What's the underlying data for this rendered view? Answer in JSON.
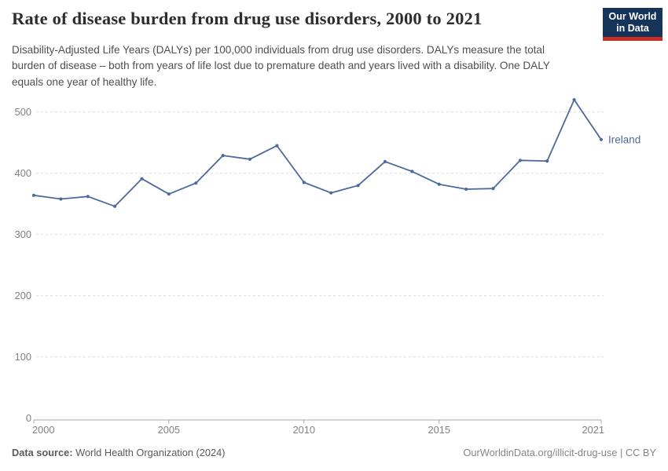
{
  "header": {
    "title": "Rate of disease burden from drug use disorders, 2000 to 2021",
    "subtitle": "Disability-Adjusted Life Years (DALYs) per 100,000 individuals from drug use disorders. DALYs measure the total burden of disease – both from years of life lost due to premature death and years lived with a disability. One DALY equals one year of healthy life.",
    "logo": {
      "line1": "Our World",
      "line2": "in Data",
      "bg_color": "#16345a",
      "stripe_color": "#c62d25"
    }
  },
  "chart_data": {
    "type": "line",
    "title": "Rate of disease burden from drug use disorders, 2000 to 2021",
    "x": [
      2000,
      2001,
      2002,
      2003,
      2004,
      2005,
      2006,
      2007,
      2008,
      2009,
      2010,
      2011,
      2012,
      2013,
      2014,
      2015,
      2016,
      2017,
      2018,
      2019,
      2020,
      2021
    ],
    "series": [
      {
        "name": "Ireland",
        "color": "#4c6a9c",
        "values": [
          364,
          358,
          362,
          346,
          391,
          366,
          384,
          429,
          423,
          445,
          385,
          368,
          380,
          419,
          403,
          382,
          374,
          375,
          421,
          420,
          520,
          455
        ]
      }
    ],
    "end_label": "Ireland",
    "ylim": [
      0,
      500
    ],
    "yticks": [
      0,
      100,
      200,
      300,
      400,
      500
    ],
    "xticks": [
      2000,
      2005,
      2010,
      2015,
      2021
    ],
    "grid": "horizontal-dashed",
    "grid_color": "#dcdcdc",
    "axis_color": "#a8a8a8",
    "tick_label_color": "#808080",
    "legend_position": "end-of-line"
  },
  "footer": {
    "datasource_label": "Data source:",
    "datasource": "World Health Organization (2024)",
    "credit": "OurWorldinData.org/illicit-drug-use | CC BY"
  }
}
